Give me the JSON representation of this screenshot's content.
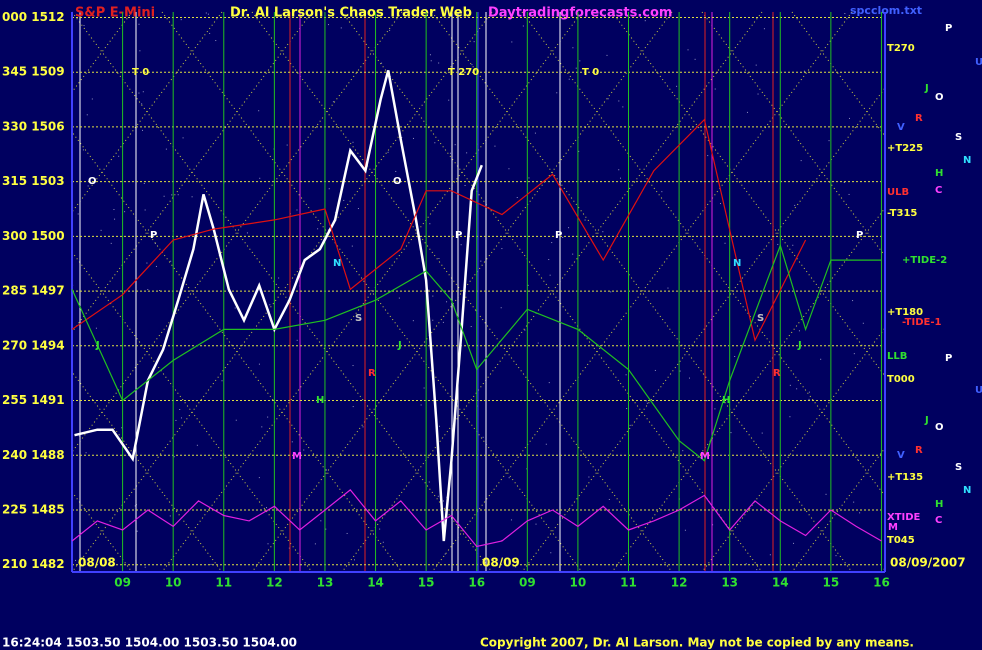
{
  "chart_data": {
    "type": "line",
    "title": "S&P E-Mini",
    "subtitle": "Dr. Al Larson's Chaos Trader Web",
    "site": "Daytradingforecasts.com",
    "file": "spcclom.txt",
    "dates": [
      "08/08",
      "08/09",
      "08/09/2007"
    ],
    "quote": "16:24:04  1503.50 1504.00 1503.50 1504.00",
    "copyright": "Copyright 2007, Dr. Al Larson. May not be copied by any means.",
    "xlim": [
      8.0,
      24.07
    ],
    "xticks": [
      {
        "value": 9,
        "label": "09"
      },
      10,
      11,
      12,
      13,
      14,
      15,
      16,
      {
        "value": 17,
        "label": "09"
      },
      {
        "value": 18,
        "label": "10"
      },
      {
        "value": 19,
        "label": "11"
      },
      {
        "value": 20,
        "label": "12"
      },
      {
        "value": 21,
        "label": "13"
      },
      {
        "value": 22,
        "label": "14"
      },
      {
        "value": 23,
        "label": "15"
      },
      {
        "value": 24,
        "label": "16"
      }
    ],
    "ylim": [
      1481.6,
      1512.3
    ],
    "yticks": [
      {
        "value": 1512,
        "label": "000 1512"
      },
      {
        "value": 1509,
        "label": "345 1509"
      },
      {
        "value": 1506,
        "label": "330 1506"
      },
      {
        "value": 1503,
        "label": "315 1503"
      },
      {
        "value": 1500,
        "label": "300 1500"
      },
      {
        "value": 1497,
        "label": "285 1497"
      },
      {
        "value": 1494,
        "label": "270 1494"
      },
      {
        "value": 1491,
        "label": "255 1491"
      },
      {
        "value": 1488,
        "label": "240 1488"
      },
      {
        "value": 1485,
        "label": "225 1485"
      },
      {
        "value": 1482,
        "label": "210 1482"
      }
    ],
    "grid": true,
    "series": [
      {
        "color": "#ffffff",
        "x": [
          8.05,
          8.5,
          8.8,
          9.2,
          9.5,
          9.8,
          10.1,
          10.4,
          10.6,
          10.8,
          11.1,
          11.4,
          11.7,
          12.0,
          12.3,
          12.6,
          12.9,
          13.2,
          13.5,
          13.8,
          14.1,
          14.25,
          14.5,
          14.8,
          15.0,
          15.2,
          15.35,
          15.5,
          15.7,
          15.9,
          16.1
        ],
        "values": [
          1489.1,
          1489.4,
          1489.4,
          1487.8,
          1492.1,
          1493.8,
          1496.5,
          1499.3,
          1502.3,
          1500.4,
          1497.1,
          1495.4,
          1497.3,
          1494.9,
          1496.5,
          1498.7,
          1499.3,
          1500.9,
          1504.7,
          1503.6,
          1507.5,
          1509.1,
          1505.3,
          1500.9,
          1497.6,
          1489.9,
          1483.3,
          1487.7,
          1494.9,
          1502.5,
          1503.9
        ]
      },
      {
        "color": "#e01010",
        "x": [
          8,
          9,
          10,
          10.8,
          12,
          13,
          13.5,
          14.5,
          15,
          15.5,
          16.5,
          17.5,
          18.5,
          19.5,
          20.5,
          21.5,
          22.5
        ],
        "values": [
          1494.9,
          1496.8,
          1499.8,
          1500.4,
          1500.9,
          1501.5,
          1497.1,
          1499.3,
          1502.5,
          1502.5,
          1501.2,
          1503.4,
          1498.7,
          1503.6,
          1506.4,
          1494.3,
          1499.8
        ]
      },
      {
        "color": "#20c020",
        "x": [
          8,
          9,
          10,
          11,
          12,
          13,
          14,
          15,
          15.5,
          16,
          17,
          18,
          19,
          20,
          20.5,
          21,
          22,
          22.5,
          23,
          24
        ],
        "values": [
          1497.1,
          1491.0,
          1493.2,
          1494.9,
          1494.9,
          1495.4,
          1496.5,
          1498.1,
          1496.5,
          1492.7,
          1496.0,
          1494.9,
          1492.7,
          1488.8,
          1487.7,
          1492.1,
          1499.5,
          1494.9,
          1498.7,
          1498.7
        ]
      },
      {
        "color": "#e020e0",
        "x": [
          8,
          8.5,
          9,
          9.5,
          10,
          10.5,
          11,
          11.5,
          12,
          12.5,
          13,
          13.5,
          14,
          14.5,
          15,
          15.5,
          16,
          16.5,
          17,
          17.5,
          18,
          18.5,
          19,
          19.5,
          20,
          20.5,
          21,
          21.5,
          22,
          22.5,
          23,
          23.5,
          24
        ],
        "values": [
          1483.3,
          1484.4,
          1483.9,
          1485.0,
          1484.1,
          1485.5,
          1484.7,
          1484.4,
          1485.2,
          1483.9,
          1485.0,
          1486.1,
          1484.4,
          1485.5,
          1483.9,
          1484.7,
          1483.0,
          1483.3,
          1484.4,
          1485.0,
          1484.1,
          1485.2,
          1483.9,
          1484.4,
          1485.0,
          1485.8,
          1483.9,
          1485.5,
          1484.4,
          1483.6,
          1485.0,
          1484.1,
          1483.3
        ]
      }
    ],
    "right_labels": [
      "T270",
      "+T225",
      "ULB",
      "-T315",
      "+TIDE-2",
      "+T180",
      "-TIDE-1",
      "LLB",
      "T000",
      "+T135",
      "XTIDE",
      "T045"
    ],
    "planet_labels": [
      "P",
      "U",
      "J",
      "O",
      "R",
      "V",
      "S",
      "N",
      "H",
      "C",
      "P",
      "U",
      "J",
      "O",
      "V",
      "R",
      "S",
      "N",
      "H",
      "C",
      "M"
    ],
    "annotations": [
      "T 0",
      "T 270",
      "T 0",
      "O",
      "P",
      "P",
      "P",
      "O",
      "P",
      "N",
      "N",
      "S",
      "S",
      "J",
      "J",
      "J",
      "H",
      "H",
      "M",
      "M",
      "R",
      "R"
    ]
  }
}
